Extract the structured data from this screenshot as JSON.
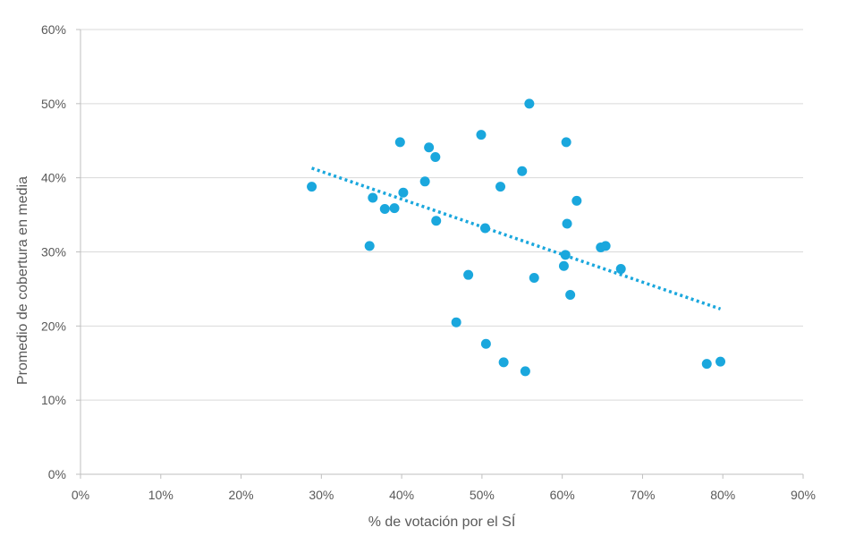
{
  "chart_data": {
    "type": "scatter",
    "title": "",
    "xlabel": "% de votación por el SÍ",
    "ylabel": "Promedio de cobertura en media",
    "xlim": [
      0,
      90
    ],
    "ylim": [
      0,
      60
    ],
    "x_ticks": [
      0,
      10,
      20,
      30,
      40,
      50,
      60,
      70,
      80,
      90
    ],
    "y_ticks": [
      0,
      10,
      20,
      30,
      40,
      50,
      60
    ],
    "x_tick_labels": [
      "0%",
      "10%",
      "20%",
      "30%",
      "40%",
      "50%",
      "60%",
      "70%",
      "80%",
      "90%"
    ],
    "y_tick_labels": [
      "0%",
      "10%",
      "20%",
      "30%",
      "40%",
      "50%",
      "60%"
    ],
    "grid": "horizontal",
    "legend": "none",
    "colors": {
      "points": "#1aa7dd",
      "trendline": "#1aa7dd",
      "grid": "#d9d9d9",
      "axis": "#bfbfbf",
      "text": "#595959"
    },
    "points": [
      {
        "x": 28.8,
        "y": 38.8
      },
      {
        "x": 36.0,
        "y": 30.8
      },
      {
        "x": 36.4,
        "y": 37.3
      },
      {
        "x": 37.9,
        "y": 35.8
      },
      {
        "x": 39.1,
        "y": 35.9
      },
      {
        "x": 39.8,
        "y": 44.8
      },
      {
        "x": 40.2,
        "y": 38.0
      },
      {
        "x": 42.9,
        "y": 39.5
      },
      {
        "x": 43.4,
        "y": 44.1
      },
      {
        "x": 44.2,
        "y": 42.8
      },
      {
        "x": 44.3,
        "y": 34.2
      },
      {
        "x": 46.8,
        "y": 20.5
      },
      {
        "x": 48.3,
        "y": 26.9
      },
      {
        "x": 49.9,
        "y": 45.8
      },
      {
        "x": 50.4,
        "y": 33.2
      },
      {
        "x": 50.5,
        "y": 17.6
      },
      {
        "x": 52.3,
        "y": 38.8
      },
      {
        "x": 52.7,
        "y": 15.1
      },
      {
        "x": 55.0,
        "y": 40.9
      },
      {
        "x": 55.4,
        "y": 13.9
      },
      {
        "x": 55.9,
        "y": 50.0
      },
      {
        "x": 56.5,
        "y": 26.5
      },
      {
        "x": 60.2,
        "y": 28.1
      },
      {
        "x": 60.4,
        "y": 29.6
      },
      {
        "x": 60.5,
        "y": 44.8
      },
      {
        "x": 60.6,
        "y": 33.8
      },
      {
        "x": 61.0,
        "y": 24.2
      },
      {
        "x": 61.8,
        "y": 36.9
      },
      {
        "x": 64.8,
        "y": 30.6
      },
      {
        "x": 65.4,
        "y": 30.8
      },
      {
        "x": 67.3,
        "y": 27.7
      },
      {
        "x": 78.0,
        "y": 14.9
      },
      {
        "x": 79.7,
        "y": 15.2
      }
    ],
    "trendline": {
      "style": "dotted",
      "x": [
        28.8,
        79.7
      ],
      "y": [
        41.3,
        22.3
      ]
    }
  }
}
